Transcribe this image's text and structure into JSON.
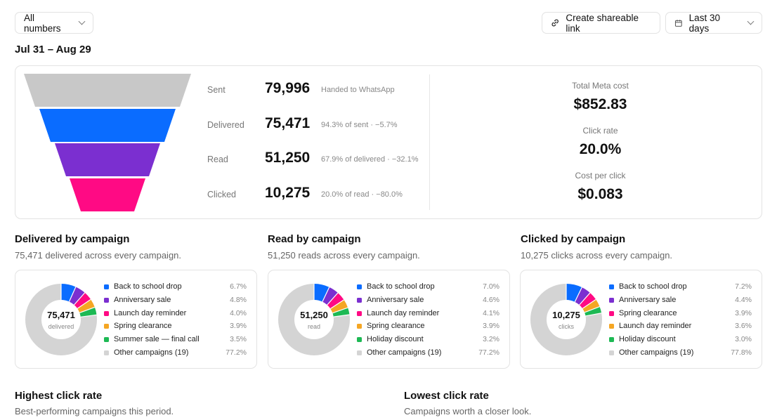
{
  "toolbar": {
    "filter_label": "All numbers",
    "share_label": "Create shareable link",
    "range_label": "Last 30 days"
  },
  "period": "Jul 31 – Aug 29",
  "funnel": {
    "colors": [
      "#c8c8c8",
      "#0a6cff",
      "#7b2fd0",
      "#ff0a84"
    ],
    "stages": [
      {
        "label": "Sent",
        "value": "79,996",
        "note": "Handed to WhatsApp"
      },
      {
        "label": "Delivered",
        "value": "75,471",
        "note": "94.3% of sent · −5.7%"
      },
      {
        "label": "Read",
        "value": "51,250",
        "note": "67.9% of delivered · −32.1%"
      },
      {
        "label": "Clicked",
        "value": "10,275",
        "note": "20.0% of read · −80.0%"
      }
    ]
  },
  "metrics": [
    {
      "label": "Total Meta cost",
      "value": "$852.83"
    },
    {
      "label": "Click rate",
      "value": "20.0%"
    },
    {
      "label": "Cost per click",
      "value": "$0.083"
    }
  ],
  "campaigns": {
    "delivered": {
      "title": "Delivered by campaign",
      "subtitle": "75,471 delivered across every campaign.",
      "center_value": "75,471",
      "center_label": "delivered",
      "items": [
        {
          "name": "Back to school drop",
          "pct": "6.7%",
          "share": 6.7,
          "color": "#0a6cff"
        },
        {
          "name": "Anniversary sale",
          "pct": "4.8%",
          "share": 4.8,
          "color": "#7b2fd0"
        },
        {
          "name": "Launch day reminder",
          "pct": "4.0%",
          "share": 4.0,
          "color": "#ff0a84"
        },
        {
          "name": "Spring clearance",
          "pct": "3.9%",
          "share": 3.9,
          "color": "#f5a623"
        },
        {
          "name": "Summer sale — final call",
          "pct": "3.5%",
          "share": 3.5,
          "color": "#1db954"
        },
        {
          "name": "Other campaigns (19)",
          "pct": "77.2%",
          "share": 77.2,
          "color": "#d4d4d4"
        }
      ]
    },
    "read": {
      "title": "Read by campaign",
      "subtitle": "51,250 reads across every campaign.",
      "center_value": "51,250",
      "center_label": "read",
      "items": [
        {
          "name": "Back to school drop",
          "pct": "7.0%",
          "share": 7.0,
          "color": "#0a6cff"
        },
        {
          "name": "Anniversary sale",
          "pct": "4.6%",
          "share": 4.6,
          "color": "#7b2fd0"
        },
        {
          "name": "Launch day reminder",
          "pct": "4.1%",
          "share": 4.1,
          "color": "#ff0a84"
        },
        {
          "name": "Spring clearance",
          "pct": "3.9%",
          "share": 3.9,
          "color": "#f5a623"
        },
        {
          "name": "Holiday discount",
          "pct": "3.2%",
          "share": 3.2,
          "color": "#1db954"
        },
        {
          "name": "Other campaigns (19)",
          "pct": "77.2%",
          "share": 77.2,
          "color": "#d4d4d4"
        }
      ]
    },
    "clicked": {
      "title": "Clicked by campaign",
      "subtitle": "10,275 clicks across every campaign.",
      "center_value": "10,275",
      "center_label": "clicks",
      "items": [
        {
          "name": "Back to school drop",
          "pct": "7.2%",
          "share": 7.2,
          "color": "#0a6cff"
        },
        {
          "name": "Anniversary sale",
          "pct": "4.4%",
          "share": 4.4,
          "color": "#7b2fd0"
        },
        {
          "name": "Spring clearance",
          "pct": "3.9%",
          "share": 3.9,
          "color": "#ff0a84"
        },
        {
          "name": "Launch day reminder",
          "pct": "3.6%",
          "share": 3.6,
          "color": "#f5a623"
        },
        {
          "name": "Holiday discount",
          "pct": "3.0%",
          "share": 3.0,
          "color": "#1db954"
        },
        {
          "name": "Other campaigns (19)",
          "pct": "77.8%",
          "share": 77.8,
          "color": "#d4d4d4"
        }
      ]
    }
  },
  "highest": {
    "title": "Highest click rate",
    "subtitle": "Best-performing campaigns this period."
  },
  "lowest": {
    "title": "Lowest click rate",
    "subtitle": "Campaigns worth a closer look."
  }
}
